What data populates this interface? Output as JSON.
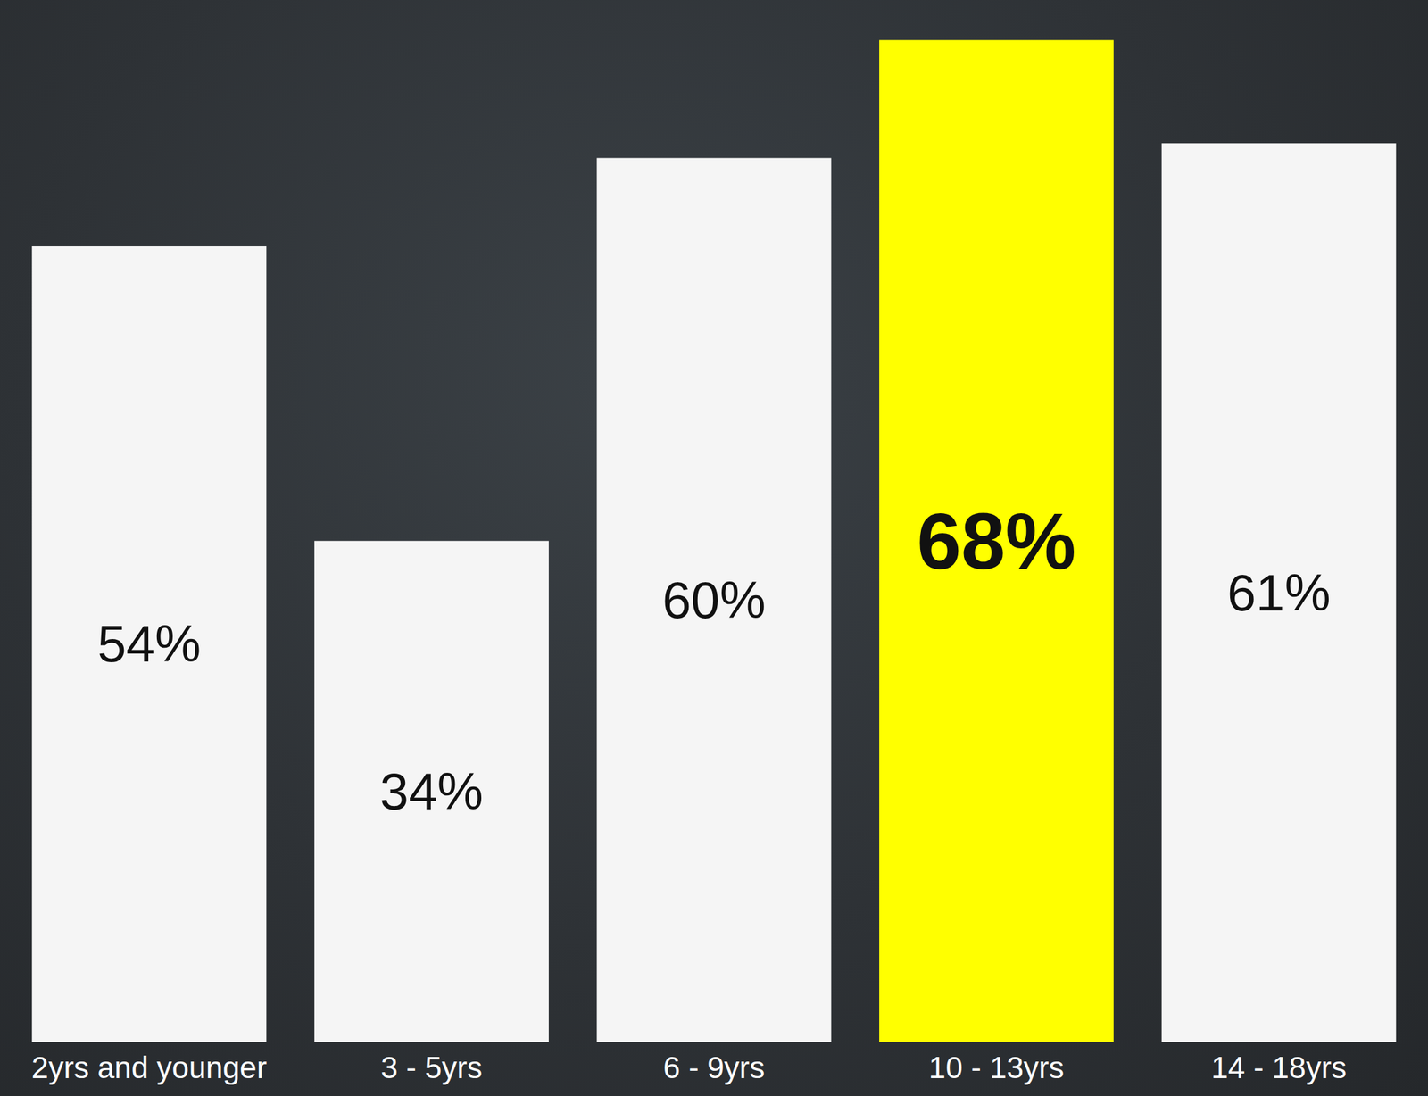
{
  "chart_data": {
    "type": "bar",
    "categories": [
      "2yrs and younger",
      "3 - 5yrs",
      "6 - 9yrs",
      "10 - 13yrs",
      "14 - 18yrs"
    ],
    "values": [
      54,
      34,
      60,
      68,
      61
    ],
    "value_labels": [
      "54%",
      "34%",
      "60%",
      "68%",
      "61%"
    ],
    "colors": [
      "#f5f5f5",
      "#f5f5f5",
      "#f5f5f5",
      "#ffff00",
      "#f5f5f5"
    ],
    "ylim": [
      0,
      70
    ],
    "data_labels": true,
    "tick_labels": "x",
    "grid": false
  }
}
